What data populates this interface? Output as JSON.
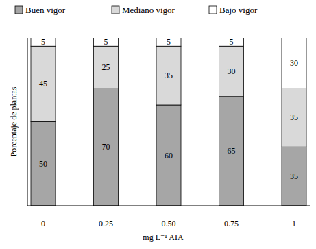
{
  "chart_data": {
    "type": "bar",
    "stacked": true,
    "data_labels": true,
    "tick_labels": "x",
    "x_label": "mg L⁻¹ AIA",
    "y_label": "Porcentaje de plantas",
    "categories": [
      "0",
      "0.25",
      "0.50",
      "0.75",
      "1"
    ],
    "series": [
      {
        "name": "Buen vigor",
        "color": "#a6a6a6",
        "values": [
          50,
          70,
          60,
          65,
          35
        ]
      },
      {
        "name": "Mediano vigor",
        "color": "#d9d9d9",
        "values": [
          45,
          25,
          35,
          30,
          35
        ]
      },
      {
        "name": "Bajo vigor",
        "color": "#ffffff",
        "values": [
          5,
          5,
          5,
          5,
          30
        ]
      }
    ],
    "ylim": [
      0,
      100
    ],
    "legend": "top"
  }
}
